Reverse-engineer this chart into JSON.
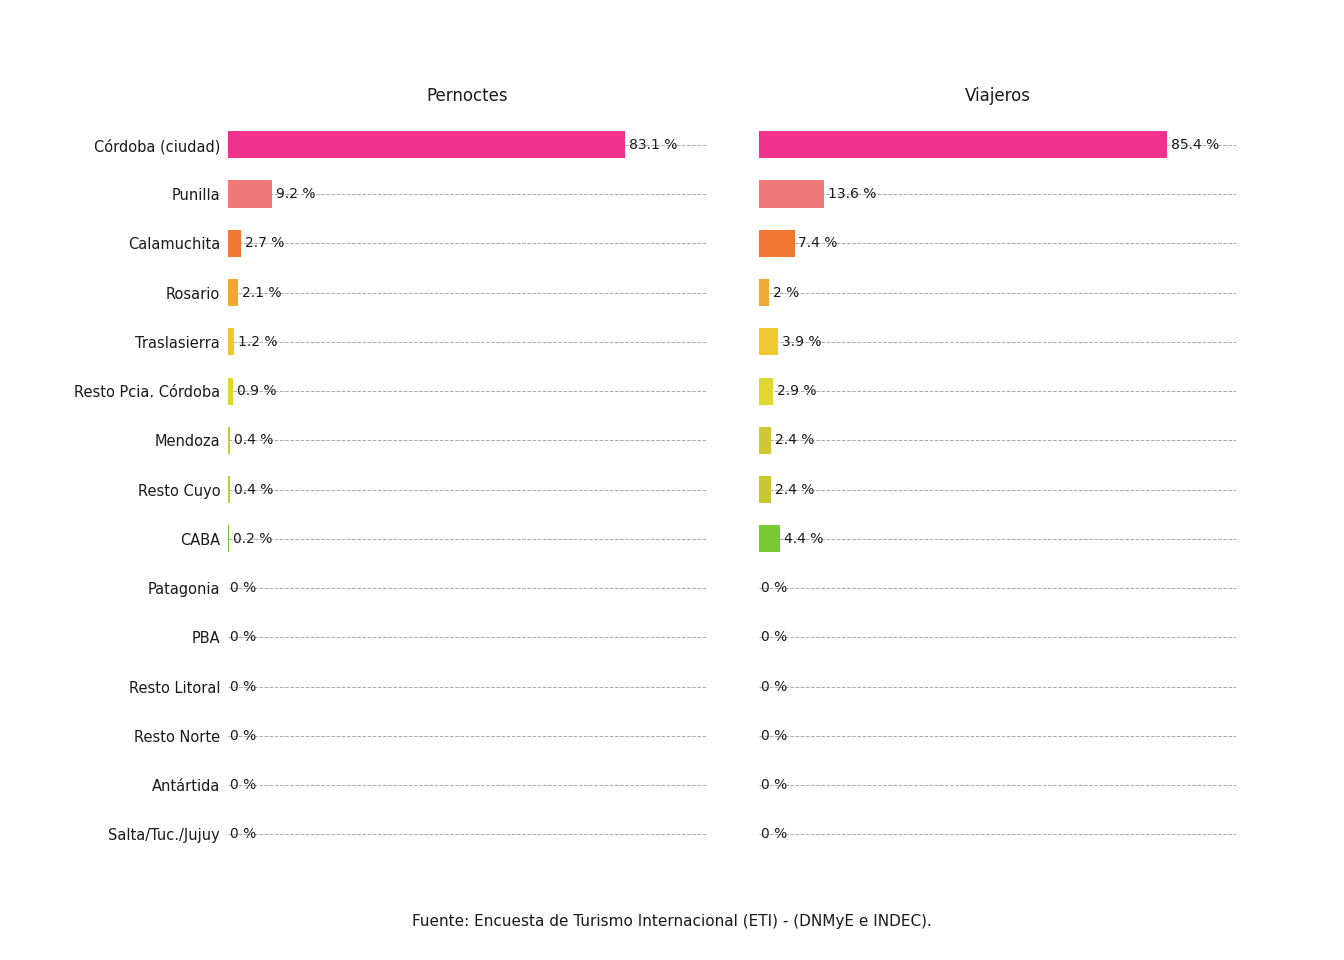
{
  "categories": [
    "Córdoba (ciudad)",
    "Punilla",
    "Calamuchita",
    "Rosario",
    "Traslasierra",
    "Resto Pcia. Córdoba",
    "Mendoza",
    "Resto Cuyo",
    "CABA",
    "Patagonia",
    "PBA",
    "Resto Litoral",
    "Resto Norte",
    "Antártida",
    "Salta/Tuc./Jujuy"
  ],
  "pernoctes": [
    83.1,
    9.2,
    2.7,
    2.1,
    1.2,
    0.9,
    0.4,
    0.4,
    0.2,
    0.0,
    0.0,
    0.0,
    0.0,
    0.0,
    0.0
  ],
  "viajeros": [
    85.4,
    13.6,
    7.4,
    2.0,
    3.9,
    2.9,
    2.4,
    2.4,
    4.4,
    0.0,
    0.0,
    0.0,
    0.0,
    0.0,
    0.0
  ],
  "pernoctes_labels": [
    "83.1 %",
    "9.2 %",
    "2.7 %",
    "2.1 %",
    "1.2 %",
    "0.9 %",
    "0.4 %",
    "0.4 %",
    "0.2 %",
    "0 %",
    "0 %",
    "0 %",
    "0 %",
    "0 %",
    "0 %"
  ],
  "viajeros_labels": [
    "85.4 %",
    "13.6 %",
    "7.4 %",
    "2 %",
    "3.9 %",
    "2.9 %",
    "2.4 %",
    "2.4 %",
    "4.4 %",
    "0 %",
    "0 %",
    "0 %",
    "0 %",
    "0 %",
    "0 %"
  ],
  "bar_colors": [
    "#f0328c",
    "#f07878",
    "#f07832",
    "#f0a832",
    "#f0c832",
    "#e0d832",
    "#d0c832",
    "#c8c832",
    "#78c832",
    "#999999",
    "#999999",
    "#999999",
    "#999999",
    "#999999",
    "#999999"
  ],
  "title_left": "Pernoctes",
  "title_right": "Viajeros",
  "footer": "Fuente: Encuesta de Turismo Internacional (ETI) - (DNMyE e INDEC).",
  "bg_color": "#ffffff",
  "text_color": "#1a1a1a",
  "xlim": [
    0,
    100
  ]
}
